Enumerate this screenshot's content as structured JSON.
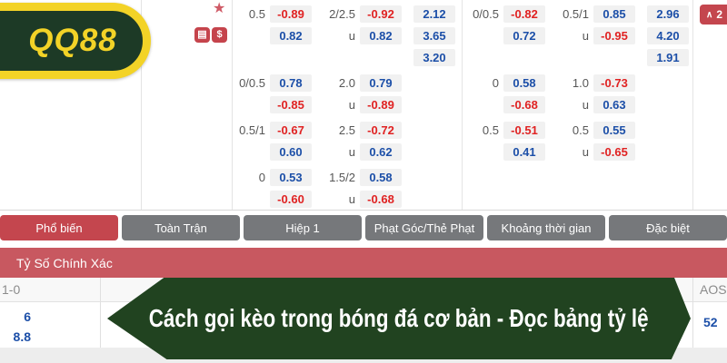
{
  "brand": {
    "logo_text": "QQ88"
  },
  "top_icons": {
    "star_glyph": "★",
    "notes_glyph": "▤",
    "dollar_glyph": "$"
  },
  "collapse_badge": {
    "chevron": "∧",
    "count": "2"
  },
  "odds_board": {
    "left_groups": [
      {
        "rows": [
          {
            "h1": "0.5",
            "o1": "-0.89",
            "h2": "2/2.5",
            "o2": "-0.92",
            "o3": "2.12"
          },
          {
            "h1": "",
            "o1": "0.82",
            "h2": "u",
            "o2": "0.82",
            "o3": "3.65"
          },
          {
            "h1": "",
            "o1": "",
            "h2": "",
            "o2": "",
            "o3": "3.20"
          }
        ]
      },
      {
        "rows": [
          {
            "h1": "0/0.5",
            "o1": "0.78",
            "h2": "2.0",
            "o2": "0.79",
            "o3": ""
          },
          {
            "h1": "",
            "o1": "-0.85",
            "h2": "u",
            "o2": "-0.89",
            "o3": ""
          }
        ]
      },
      {
        "rows": [
          {
            "h1": "0.5/1",
            "o1": "-0.67",
            "h2": "2.5",
            "o2": "-0.72",
            "o3": ""
          },
          {
            "h1": "",
            "o1": "0.60",
            "h2": "u",
            "o2": "0.62",
            "o3": ""
          }
        ]
      },
      {
        "rows": [
          {
            "h1": "0",
            "o1": "0.53",
            "h2": "1.5/2",
            "o2": "0.58",
            "o3": ""
          },
          {
            "h1": "",
            "o1": "-0.60",
            "h2": "u",
            "o2": "-0.68",
            "o3": ""
          }
        ]
      }
    ],
    "right_groups": [
      {
        "rows": [
          {
            "h1": "0/0.5",
            "o1": "-0.82",
            "h2": "0.5/1",
            "o2": "0.85",
            "o3": "2.96"
          },
          {
            "h1": "",
            "o1": "0.72",
            "h2": "u",
            "o2": "-0.95",
            "o3": "4.20"
          },
          {
            "h1": "",
            "o1": "",
            "h2": "",
            "o2": "",
            "o3": "1.91"
          }
        ]
      },
      {
        "rows": [
          {
            "h1": "0",
            "o1": "0.58",
            "h2": "1.0",
            "o2": "-0.73",
            "o3": ""
          },
          {
            "h1": "",
            "o1": "-0.68",
            "h2": "u",
            "o2": "0.63",
            "o3": ""
          }
        ]
      },
      {
        "rows": [
          {
            "h1": "0.5",
            "o1": "-0.51",
            "h2": "0.5",
            "o2": "0.55",
            "o3": ""
          },
          {
            "h1": "",
            "o1": "0.41",
            "h2": "u",
            "o2": "-0.65",
            "o3": ""
          }
        ]
      }
    ]
  },
  "tabs": {
    "items": [
      {
        "label": "Phổ biến",
        "active": true
      },
      {
        "label": "Toàn Trận",
        "active": false
      },
      {
        "label": "Hiệp 1",
        "active": false
      },
      {
        "label": "Phạt Góc/Thẻ Phạt",
        "active": false
      },
      {
        "label": "Khoảng thời gian",
        "active": false
      },
      {
        "label": "Đặc biệt",
        "active": false
      }
    ]
  },
  "section_header": {
    "title": "Tỷ Số Chính Xác"
  },
  "score_table": {
    "left_header": "1-0",
    "left_values": [
      "6",
      "8.8"
    ],
    "right_header": "AOS",
    "right_values": [
      "52"
    ]
  },
  "banner": {
    "text": "Cách gọi kèo trong bóng đá cơ bản - Đọc bảng tỷ lệ"
  },
  "colors": {
    "odds_positive": "#1c4fa8",
    "odds_negative": "#e02222",
    "tab_active_red": "#c4464e",
    "header_red": "#c85860",
    "banner_green": "#214320",
    "logo_yellow": "#f3d327",
    "logo_green": "#1d3a26"
  }
}
